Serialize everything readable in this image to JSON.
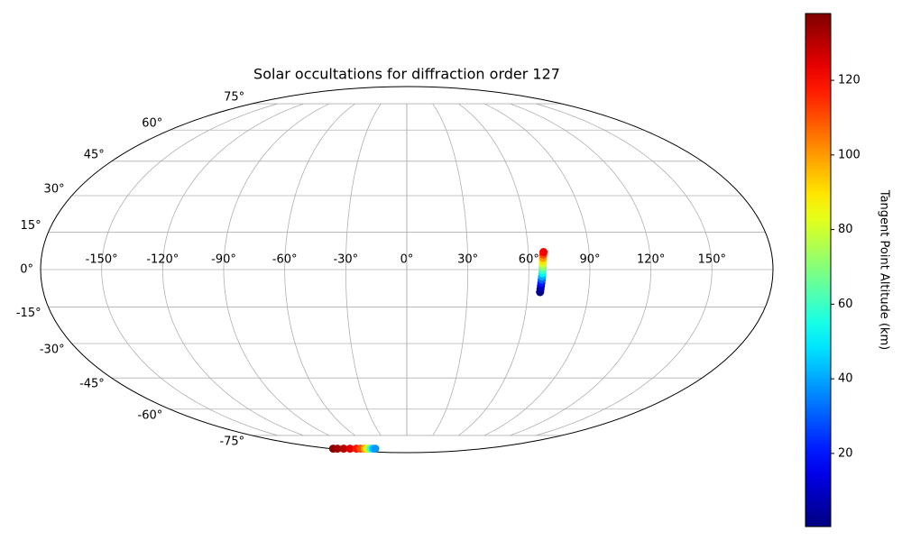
{
  "chart_data": {
    "type": "scatter",
    "projection": "mollweide",
    "title": "Solar occultations for diffraction order 127",
    "xlim": [
      -180,
      180
    ],
    "ylim": [
      -90,
      90
    ],
    "xticks": [
      {
        "value": -150,
        "label": "-150°"
      },
      {
        "value": -120,
        "label": "-120°"
      },
      {
        "value": -90,
        "label": "-90°"
      },
      {
        "value": -60,
        "label": "-60°"
      },
      {
        "value": -30,
        "label": "-30°"
      },
      {
        "value": 0,
        "label": "0°"
      },
      {
        "value": 30,
        "label": "30°"
      },
      {
        "value": 60,
        "label": "60°"
      },
      {
        "value": 90,
        "label": "90°"
      },
      {
        "value": 120,
        "label": "120°"
      },
      {
        "value": 150,
        "label": "150°"
      }
    ],
    "yticks": [
      {
        "value": -75,
        "label": "-75°"
      },
      {
        "value": -60,
        "label": "-60°"
      },
      {
        "value": -45,
        "label": "-45°"
      },
      {
        "value": -30,
        "label": "-30°"
      },
      {
        "value": -15,
        "label": "-15°"
      },
      {
        "value": 0,
        "label": "0°"
      },
      {
        "value": 15,
        "label": "15°"
      },
      {
        "value": 30,
        "label": "30°"
      },
      {
        "value": 45,
        "label": "45°"
      },
      {
        "value": 60,
        "label": "60°"
      },
      {
        "value": 75,
        "label": "75°"
      }
    ],
    "grid": true,
    "colorbar": {
      "label": "Tangent Point Altitude (km)",
      "cmap": "jet",
      "clim": [
        0.4,
        137.9
      ],
      "ticks": [
        20,
        40,
        60,
        80,
        100,
        120
      ]
    },
    "series": [
      {
        "x": [
          66,
          66.1,
          66.2,
          66.3,
          66.4,
          66.5,
          66.6,
          66.7,
          66.8,
          66.9,
          67,
          67.1,
          67.3,
          67.5
        ],
        "y": [
          -9,
          -7.8,
          -6.5,
          -5.3,
          -4,
          -2.8,
          -1.5,
          -0.3,
          1,
          2.2,
          3.5,
          4.7,
          6,
          7
        ],
        "c": [
          0.5,
          5,
          10,
          20,
          30,
          40,
          50,
          60,
          70,
          80,
          90,
          100,
          112,
          122
        ]
      },
      {
        "x": [
          -175,
          -165,
          -150,
          -135,
          -120,
          -110,
          -100,
          -95,
          -90,
          -85,
          -80,
          -75
        ],
        "y": [
          -85,
          -85,
          -85,
          -85,
          -85,
          -85,
          -85,
          -85,
          -85,
          -85,
          -85,
          -85
        ],
        "c": [
          137,
          134,
          130,
          125,
          118,
          110,
          100,
          90,
          75,
          60,
          45,
          38
        ]
      }
    ]
  }
}
